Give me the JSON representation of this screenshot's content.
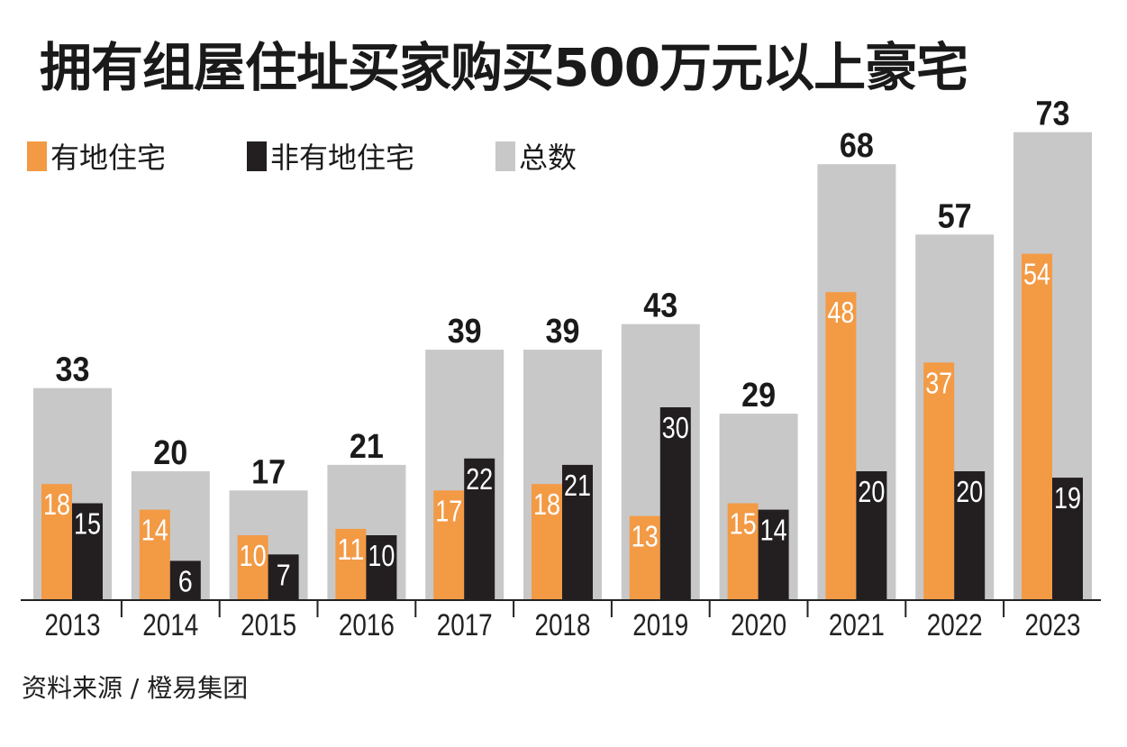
{
  "chart_data": {
    "type": "bar",
    "title": "拥有组屋住址买家购买500万元以上豪宅",
    "xlabel": "",
    "ylabel": "",
    "categories": [
      "2013",
      "2014",
      "2015",
      "2016",
      "2017",
      "2018",
      "2019",
      "2020",
      "2021",
      "2022",
      "2023"
    ],
    "series": [
      {
        "name": "有地住宅",
        "color": "#f39a45",
        "values": [
          18,
          14,
          10,
          11,
          17,
          18,
          13,
          15,
          48,
          37,
          54
        ]
      },
      {
        "name": "非有地住宅",
        "color": "#231f20",
        "values": [
          15,
          6,
          7,
          10,
          22,
          21,
          30,
          14,
          20,
          20,
          19
        ]
      },
      {
        "name": "总数",
        "color": "#c8c8c9",
        "values": [
          33,
          20,
          17,
          21,
          39,
          39,
          43,
          29,
          68,
          57,
          73
        ]
      }
    ],
    "ylim": [
      0,
      73
    ],
    "grid": false,
    "legend_position": "top-left",
    "source": "资料来源 / 橙易集团"
  },
  "legend": [
    {
      "label": "有地住宅",
      "color": "#f39a45"
    },
    {
      "label": "非有地住宅",
      "color": "#231f20"
    },
    {
      "label": "总数",
      "color": "#c8c8c9"
    }
  ]
}
